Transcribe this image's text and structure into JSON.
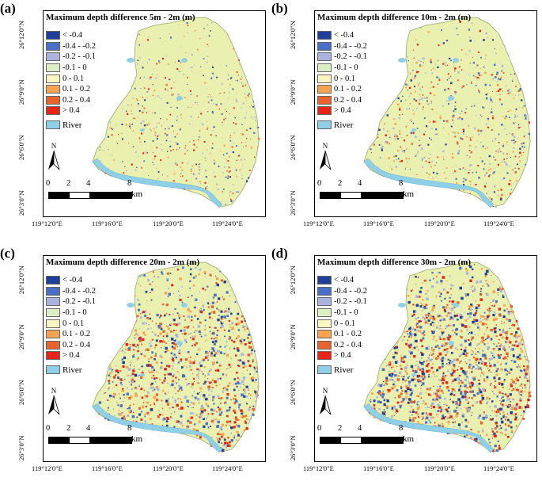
{
  "panels": [
    {
      "letter": "(a)",
      "title": "Maximum depth difference 5m - 2m (m)",
      "intensity": 1
    },
    {
      "letter": "(b)",
      "title": "Maximum depth difference 10m - 2m (m)",
      "intensity": 1.3
    },
    {
      "letter": "(c)",
      "title": "Maximum depth difference 20m - 2m (m)",
      "intensity": 2.4
    },
    {
      "letter": "(d)",
      "title": "Maximum depth difference 30m - 2m (m)",
      "intensity": 3
    }
  ],
  "legend": [
    {
      "label": "< -0.4",
      "color": "#1f3f9a"
    },
    {
      "label": "-0.4 - -0.2",
      "color": "#4a6fc6"
    },
    {
      "label": "-0.2 - -0.1",
      "color": "#aab3de"
    },
    {
      "label": "-0.1 - 0",
      "color": "#dcf0c4"
    },
    {
      "label": "0 - 0.1",
      "color": "#fbf6c1"
    },
    {
      "label": "0.1 - 0.2",
      "color": "#f7a352"
    },
    {
      "label": "0.2 - 0.4",
      "color": "#e8632d"
    },
    {
      "label": "> 0.4",
      "color": "#e62418"
    }
  ],
  "river": {
    "label": "River",
    "color": "#8fd0e8"
  },
  "land_color": "#eaf0b0",
  "north_label": "N",
  "scale": {
    "ticks": [
      "0",
      "2",
      "4",
      "8"
    ],
    "unit": "km"
  },
  "latitudes": [
    "26°12'0\"N",
    "26°9'0\"N",
    "26°6'0\"N",
    "26°3'0\"N"
  ],
  "longitudes": [
    "119°12'0\"E",
    "119°16'0\"E",
    "119°20'0\"E",
    "119°24'0\"E"
  ]
}
